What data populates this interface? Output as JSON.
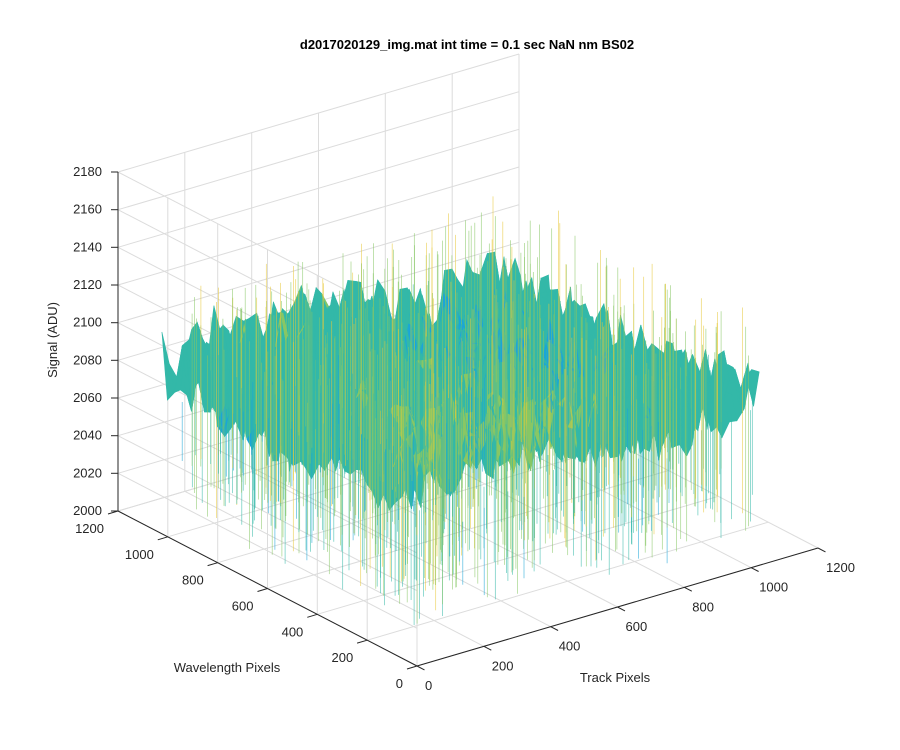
{
  "chart_data": {
    "type": "surface",
    "title": "d2017020129_img.mat int time = 0.1 sec  NaN nm BS02",
    "xlabel": "Track Pixels",
    "ylabel": "Wavelength Pixels",
    "zlabel": "Signal (ADU)",
    "xlim": [
      0,
      1200
    ],
    "ylim": [
      0,
      1200
    ],
    "zlim": [
      2000,
      2180
    ],
    "xticks": [
      "0",
      "200",
      "400",
      "600",
      "800",
      "1000",
      "1200"
    ],
    "yticks": [
      "0",
      "200",
      "400",
      "600",
      "800",
      "1000",
      "1200"
    ],
    "zticks": [
      "2000",
      "2020",
      "2040",
      "2060",
      "2080",
      "2100",
      "2120",
      "2140",
      "2160",
      "2180"
    ],
    "x_extent": [
      0,
      1024
    ],
    "y_extent": [
      0,
      1024
    ],
    "signal_range_approx": [
      2000,
      2175
    ],
    "colormap": [
      "#0072bd",
      "#1ba5d8",
      "#33b8a8",
      "#88c765",
      "#e8c93a"
    ],
    "grid": true,
    "view": "3-D, azimuth -37.5, elevation 30"
  }
}
